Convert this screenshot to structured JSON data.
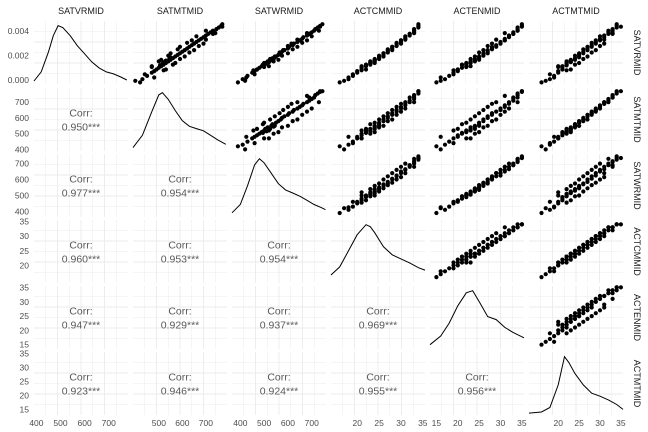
{
  "chart_data": {
    "type": "scatter",
    "variables": [
      "SATVRMID",
      "SATMTMID",
      "SATWRMID",
      "ACTCMMID",
      "ACTENMID",
      "ACTMTMID"
    ],
    "axis_ranges": {
      "SATVRMID": [
        390,
        780
      ],
      "SATMTMID": [
        390,
        790
      ],
      "SATWRMID": [
        365,
        760
      ],
      "ACTCMMID": [
        14,
        35.5
      ],
      "ACTENMID": [
        13.5,
        35.5
      ],
      "ACTMTMID": [
        13,
        35.5
      ]
    },
    "density_y_ticks": [
      "0.000",
      "0.002",
      "0.004"
    ],
    "y_ticks": {
      "SATMTMID": [
        "400",
        "500",
        "600",
        "700"
      ],
      "SATWRMID": [
        "400",
        "500",
        "600",
        "700"
      ],
      "ACTCMMID": [
        "20",
        "25",
        "30",
        "35"
      ],
      "ACTENMID": [
        "15",
        "20",
        "25",
        "30",
        "35"
      ],
      "ACTMTMID": [
        "15",
        "20",
        "25",
        "30",
        "35"
      ]
    },
    "x_ticks": {
      "SATVRMID": [
        "400",
        "500",
        "600",
        "700"
      ],
      "SATMTMID": [
        "500",
        "600",
        "700"
      ],
      "SATWRMID": [
        "400",
        "500",
        "600",
        "700"
      ],
      "ACTCMMID": [
        "20",
        "25",
        "30",
        "35"
      ],
      "ACTENMID": [
        "15",
        "20",
        "25",
        "30",
        "35"
      ],
      "ACTMTMID": [
        "20",
        "25",
        "30",
        "35"
      ]
    },
    "correlations": [
      {
        "row": "SATMTMID",
        "col": "SATVRMID",
        "label": "Corr:",
        "value": "0.950***"
      },
      {
        "row": "SATWRMID",
        "col": "SATVRMID",
        "label": "Corr:",
        "value": "0.977***"
      },
      {
        "row": "SATWRMID",
        "col": "SATMTMID",
        "label": "Corr:",
        "value": "0.954***"
      },
      {
        "row": "ACTCMMID",
        "col": "SATVRMID",
        "label": "Corr:",
        "value": "0.960***"
      },
      {
        "row": "ACTCMMID",
        "col": "SATMTMID",
        "label": "Corr:",
        "value": "0.953***"
      },
      {
        "row": "ACTCMMID",
        "col": "SATWRMID",
        "label": "Corr:",
        "value": "0.954***"
      },
      {
        "row": "ACTENMID",
        "col": "SATVRMID",
        "label": "Corr:",
        "value": "0.947***"
      },
      {
        "row": "ACTENMID",
        "col": "SATMTMID",
        "label": "Corr:",
        "value": "0.929***"
      },
      {
        "row": "ACTENMID",
        "col": "SATWRMID",
        "label": "Corr:",
        "value": "0.937***"
      },
      {
        "row": "ACTENMID",
        "col": "ACTCMMID",
        "label": "Corr:",
        "value": "0.969***"
      },
      {
        "row": "ACTMTMID",
        "col": "SATVRMID",
        "label": "Corr:",
        "value": "0.923***"
      },
      {
        "row": "ACTMTMID",
        "col": "SATMTMID",
        "label": "Corr:",
        "value": "0.946***"
      },
      {
        "row": "ACTMTMID",
        "col": "SATWRMID",
        "label": "Corr:",
        "value": "0.924***"
      },
      {
        "row": "ACTMTMID",
        "col": "ACTCMMID",
        "label": "Corr:",
        "value": "0.955***"
      },
      {
        "row": "ACTMTMID",
        "col": "ACTENMID",
        "label": "Corr:",
        "value": "0.956***"
      }
    ],
    "density_curves": {
      "SATVRMID": [
        [
          390,
          0.0003
        ],
        [
          420,
          0.0012
        ],
        [
          450,
          0.0032
        ],
        [
          470,
          0.0048
        ],
        [
          490,
          0.0058
        ],
        [
          510,
          0.0056
        ],
        [
          540,
          0.0048
        ],
        [
          570,
          0.0038
        ],
        [
          600,
          0.003
        ],
        [
          630,
          0.0022
        ],
        [
          660,
          0.0016
        ],
        [
          690,
          0.0012
        ],
        [
          720,
          0.001
        ],
        [
          750,
          0.0007
        ],
        [
          775,
          0.0004
        ]
      ],
      "SATMTMID": [
        [
          390,
          0.0003
        ],
        [
          430,
          0.0014
        ],
        [
          470,
          0.0035
        ],
        [
          500,
          0.005
        ],
        [
          515,
          0.0052
        ],
        [
          540,
          0.0046
        ],
        [
          570,
          0.0036
        ],
        [
          600,
          0.0027
        ],
        [
          630,
          0.0022
        ],
        [
          660,
          0.002
        ],
        [
          690,
          0.0018
        ],
        [
          720,
          0.0014
        ],
        [
          750,
          0.001
        ],
        [
          785,
          0.0006
        ]
      ],
      "SATWRMID": [
        [
          365,
          0.0004
        ],
        [
          400,
          0.0012
        ],
        [
          430,
          0.003
        ],
        [
          460,
          0.005
        ],
        [
          480,
          0.0056
        ],
        [
          500,
          0.0052
        ],
        [
          530,
          0.0042
        ],
        [
          560,
          0.0032
        ],
        [
          590,
          0.0026
        ],
        [
          620,
          0.0023
        ],
        [
          650,
          0.002
        ],
        [
          680,
          0.0016
        ],
        [
          710,
          0.0012
        ],
        [
          740,
          0.0009
        ],
        [
          758,
          0.0007
        ]
      ],
      "ACTCMMID": [
        [
          14,
          0.02
        ],
        [
          16,
          0.04
        ],
        [
          18,
          0.08
        ],
        [
          20,
          0.12
        ],
        [
          22,
          0.145
        ],
        [
          23,
          0.14
        ],
        [
          24,
          0.125
        ],
        [
          26,
          0.09
        ],
        [
          28,
          0.07
        ],
        [
          30,
          0.06
        ],
        [
          32,
          0.05
        ],
        [
          34,
          0.038
        ],
        [
          35.5,
          0.032
        ]
      ],
      "ACTENMID": [
        [
          13.5,
          0.01
        ],
        [
          16,
          0.03
        ],
        [
          18,
          0.06
        ],
        [
          20,
          0.1
        ],
        [
          22,
          0.13
        ],
        [
          23.5,
          0.135
        ],
        [
          25,
          0.11
        ],
        [
          27,
          0.075
        ],
        [
          29,
          0.068
        ],
        [
          31,
          0.05
        ],
        [
          33,
          0.038
        ],
        [
          35.5,
          0.026
        ]
      ],
      "ACTMTMID": [
        [
          13,
          0.005
        ],
        [
          16,
          0.008
        ],
        [
          18,
          0.02
        ],
        [
          20,
          0.08
        ],
        [
          21.5,
          0.155
        ],
        [
          22.5,
          0.14
        ],
        [
          24,
          0.11
        ],
        [
          26,
          0.08
        ],
        [
          28,
          0.058
        ],
        [
          30,
          0.05
        ],
        [
          32,
          0.04
        ],
        [
          34,
          0.028
        ],
        [
          35.5,
          0.015
        ]
      ]
    },
    "scatter_points": {
      "type": "sampled pairs of (SATVRMID, SATMTMID, SATWRMID, ACTCMMID, ACTENMID, ACTMTMID) per school",
      "rows": [
        [
          420,
          430,
          410,
          18,
          17,
          18
        ],
        [
          440,
          450,
          430,
          19,
          18,
          19
        ],
        [
          460,
          470,
          450,
          20,
          19,
          20
        ],
        [
          470,
          480,
          460,
          20,
          20,
          20
        ],
        [
          480,
          490,
          470,
          21,
          20,
          21
        ],
        [
          490,
          500,
          480,
          21,
          21,
          21
        ],
        [
          500,
          510,
          490,
          22,
          22,
          21
        ],
        [
          505,
          505,
          495,
          22,
          21,
          22
        ],
        [
          510,
          520,
          500,
          22,
          22,
          22
        ],
        [
          515,
          515,
          510,
          23,
          22,
          22
        ],
        [
          520,
          530,
          505,
          23,
          23,
          22
        ],
        [
          525,
          520,
          520,
          23,
          23,
          23
        ],
        [
          530,
          540,
          515,
          24,
          23,
          23
        ],
        [
          535,
          530,
          525,
          24,
          24,
          23
        ],
        [
          540,
          550,
          530,
          24,
          24,
          24
        ],
        [
          545,
          545,
          540,
          24,
          24,
          24
        ],
        [
          550,
          560,
          535,
          25,
          25,
          24
        ],
        [
          555,
          550,
          545,
          25,
          25,
          25
        ],
        [
          560,
          570,
          550,
          25,
          25,
          25
        ],
        [
          570,
          580,
          560,
          26,
          26,
          25
        ],
        [
          580,
          590,
          570,
          26,
          26,
          26
        ],
        [
          590,
          600,
          575,
          27,
          27,
          26
        ],
        [
          600,
          610,
          585,
          27,
          27,
          27
        ],
        [
          610,
          620,
          600,
          28,
          28,
          27
        ],
        [
          620,
          630,
          605,
          28,
          28,
          28
        ],
        [
          630,
          640,
          620,
          29,
          29,
          28
        ],
        [
          640,
          650,
          625,
          29,
          30,
          29
        ],
        [
          650,
          660,
          640,
          30,
          30,
          29
        ],
        [
          660,
          670,
          650,
          30,
          31,
          30
        ],
        [
          670,
          680,
          660,
          31,
          31,
          30
        ],
        [
          680,
          690,
          665,
          31,
          32,
          31
        ],
        [
          690,
          700,
          680,
          32,
          32,
          31
        ],
        [
          700,
          710,
          690,
          32,
          33,
          32
        ],
        [
          710,
          720,
          700,
          33,
          33,
          32
        ],
        [
          720,
          730,
          710,
          33,
          34,
          33
        ],
        [
          730,
          745,
          715,
          33,
          34,
          33
        ],
        [
          740,
          755,
          725,
          34,
          34,
          34
        ],
        [
          750,
          765,
          735,
          34,
          35,
          34
        ],
        [
          760,
          770,
          745,
          34,
          35,
          34
        ],
        [
          430,
          480,
          425,
          18,
          16,
          19
        ],
        [
          450,
          440,
          460,
          19,
          19,
          18
        ],
        [
          475,
          520,
          455,
          21,
          19,
          22
        ],
        [
          495,
          470,
          500,
          21,
          22,
          20
        ],
        [
          510,
          560,
          495,
          23,
          21,
          24
        ],
        [
          530,
          500,
          540,
          23,
          24,
          22
        ],
        [
          545,
          590,
          525,
          25,
          23,
          26
        ],
        [
          565,
          540,
          575,
          25,
          26,
          24
        ],
        [
          585,
          630,
          565,
          27,
          25,
          28
        ],
        [
          605,
          580,
          620,
          27,
          28,
          26
        ],
        [
          625,
          670,
          600,
          29,
          27,
          30
        ],
        [
          645,
          620,
          660,
          29,
          30,
          28
        ],
        [
          665,
          700,
          640,
          31,
          29,
          31
        ],
        [
          685,
          660,
          700,
          31,
          32,
          30
        ],
        [
          705,
          740,
          680,
          33,
          31,
          33
        ],
        [
          400,
          420,
          390,
          16,
          15,
          16
        ],
        [
          410,
          400,
          420,
          17,
          16,
          17
        ],
        [
          480,
          530,
          470,
          22,
          20,
          23
        ],
        [
          500,
          470,
          520,
          21,
          23,
          20
        ],
        [
          520,
          570,
          500,
          24,
          22,
          25
        ],
        [
          540,
          510,
          560,
          24,
          25,
          23
        ],
        [
          560,
          610,
          545,
          26,
          24,
          27
        ],
        [
          580,
          550,
          600,
          26,
          27,
          25
        ],
        [
          600,
          650,
          580,
          28,
          26,
          29
        ],
        [
          620,
          590,
          640,
          28,
          29,
          27
        ],
        [
          640,
          690,
          615,
          30,
          28,
          31
        ],
        [
          660,
          640,
          680,
          30,
          31,
          29
        ],
        [
          700,
          730,
          690,
          32,
          33,
          33
        ],
        [
          720,
          700,
          730,
          33,
          34,
          32
        ],
        [
          745,
          770,
          735,
          34,
          35,
          35
        ]
      ]
    }
  }
}
